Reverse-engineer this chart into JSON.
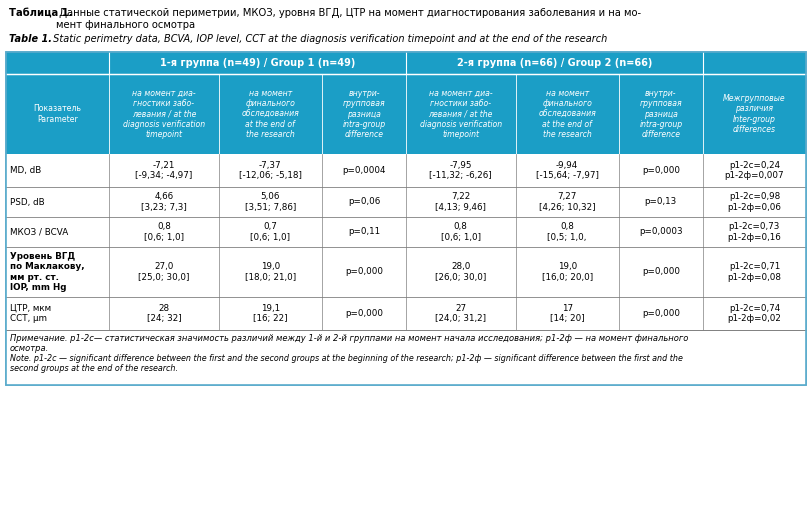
{
  "title_ru_bold": "Таблица 1.",
  "title_ru_rest": " Данные статической периметрии, МКОЗ, уровня ВГД, ЦТР на момент диагностирования заболевания и на мо-\nмент финального осмотра",
  "title_en_bold": "Table 1.",
  "title_en_rest": " Static perimetry data, BCVA, IOP level, CCT at the diagnosis verification timepoint and at the end of the research",
  "header_color": "#1b9ec6",
  "header_text_color": "#ffffff",
  "border_color": "#5aabcc",
  "inner_border_color": "#a0a0a0",
  "group1_header": "1-я группа (n=49) / Group 1 (n=49)",
  "group2_header": "2-я группа (n=66) / Group 2 (n=66)",
  "col_headers": [
    "Показатель\nParameter",
    "на момент диа-\nгностики забо-\nлевания / at the\ndiagnosis verification\ntimepoint",
    "на момент\nфинального\nобследования\nat the end of\nthe research",
    "внутри-\nгрупповая\nразница\nintra-group\ndifference",
    "на момент диа-\nгностики забо-\nлевания / at the\ndiagnosis verification\ntimepoint",
    "на момент\nфинального\nобследования\nat the end of\nthe research",
    "внутри-\nгрупповая\nразница\nintra-group\ndifference",
    "Межгрупповые\nразличия\nInter-group\ndifferences"
  ],
  "rows": [
    {
      "param": "MD, dB",
      "g1_diag": "-7,21\n[-9,34; -4,97]",
      "g1_final": "-7,37\n[-12,06; -5,18]",
      "g1_diff": "p=0,0004",
      "g2_diag": "-7,95\n[-11,32; -6,26]",
      "g2_final": "-9,94\n[-15,64; -7,97]",
      "g2_diff": "p=0,000",
      "inter": "p1-2c=0,24\np1-2ф=0,007"
    },
    {
      "param": "PSD, dB",
      "g1_diag": "4,66\n[3,23; 7,3]",
      "g1_final": "5,06\n[3,51; 7,86]",
      "g1_diff": "p=0,06",
      "g2_diag": "7,22\n[4,13; 9,46]",
      "g2_final": "7,27\n[4,26; 10,32]",
      "g2_diff": "p=0,13",
      "inter": "p1-2c=0,98\np1-2ф=0,06"
    },
    {
      "param": "МКОЗ / BCVA",
      "g1_diag": "0,8\n[0,6; 1,0]",
      "g1_final": "0,7\n[0,6; 1,0]",
      "g1_diff": "p=0,11",
      "g2_diag": "0,8\n[0,6; 1,0]",
      "g2_final": "0,8\n[0,5; 1,0,",
      "g2_diff": "p=0,0003",
      "inter": "p1-2c=0,73\np1-2ф=0,16"
    },
    {
      "param": "Уровень ВГД\nпо Маклакову,\nмм рт. ст.\nIOP, mm Hg",
      "g1_diag": "27,0\n[25,0; 30,0]",
      "g1_final": "19,0\n[18,0; 21,0]",
      "g1_diff": "p=0,000",
      "g2_diag": "28,0\n[26,0; 30,0]",
      "g2_final": "19,0\n[16,0; 20,0]",
      "g2_diff": "p=0,000",
      "inter": "p1-2c=0,71\np1-2ф=0,08"
    },
    {
      "param": "ЦТР, мкм\nCCT, µm",
      "g1_diag": "28\n[24; 32]",
      "g1_final": "19,1\n[16; 22]",
      "g1_diff": "p=0,000",
      "g2_diag": "27\n[24,0; 31,2]",
      "g2_final": "17\n[14; 20]",
      "g2_diff": "p=0,000",
      "inter": "p1-2c=0,74\np1-2ф=0,02"
    }
  ],
  "footnote_ru": "Примечание. p1-2c— статистическая значимость различий между 1-й и 2-й группами на момент начала исследования; p1-2ф — на момент финального\nосмотра.",
  "footnote_en": "Note. p1-2c — significant difference between the first and the second groups at the beginning of the research; p1-2ф — significant difference between the first and the\nsecond groups at the end of the research."
}
